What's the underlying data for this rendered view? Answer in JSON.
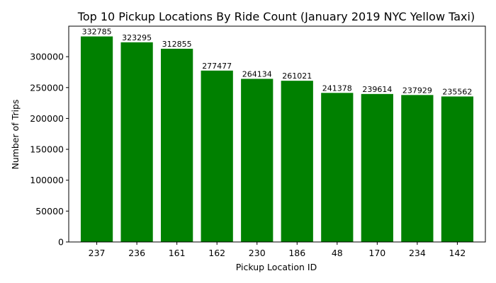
{
  "chart_data": {
    "type": "bar",
    "title": "Top 10 Pickup Locations By Ride Count (January 2019 NYC Yellow Taxi)",
    "xlabel": "Pickup Location ID",
    "ylabel": "Number of Trips",
    "categories": [
      "237",
      "236",
      "161",
      "162",
      "230",
      "186",
      "48",
      "170",
      "234",
      "142"
    ],
    "values": [
      332785,
      323295,
      312855,
      277477,
      264134,
      261021,
      241378,
      239614,
      237929,
      235562
    ],
    "data_labels": [
      "332785",
      "323295",
      "312855",
      "277477",
      "264134",
      "261021",
      "241378",
      "239614",
      "237929",
      "235562"
    ],
    "ylim": [
      0,
      349407
    ],
    "yticks": [
      0,
      50000,
      100000,
      150000,
      200000,
      250000,
      300000
    ],
    "ytick_labels": [
      "0",
      "50000",
      "100000",
      "150000",
      "200000",
      "250000",
      "300000"
    ],
    "bar_color": "#008000",
    "grid": false,
    "legend": "none"
  }
}
